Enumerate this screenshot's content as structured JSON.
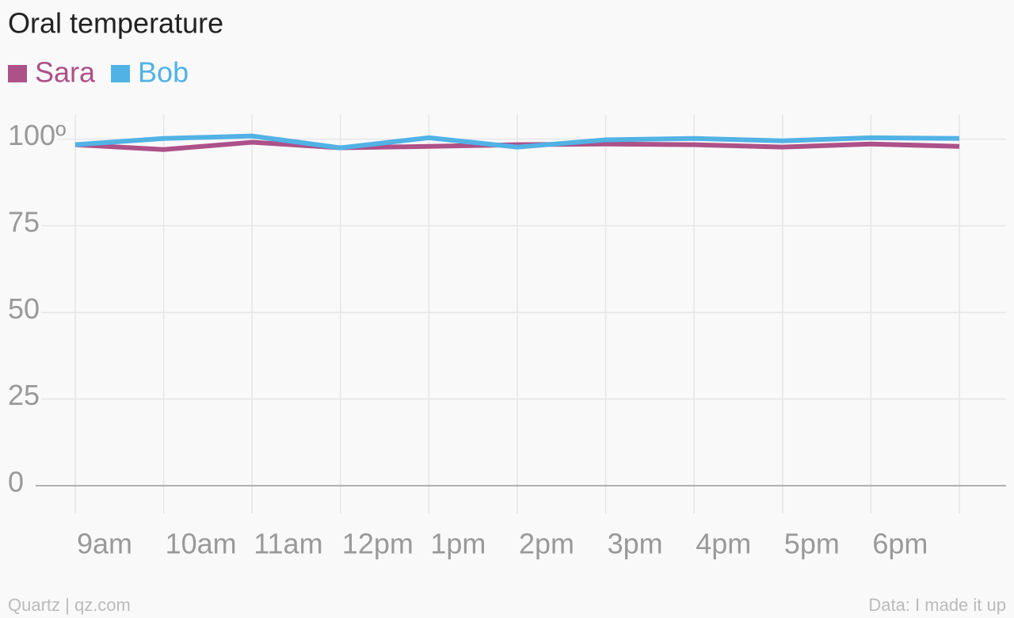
{
  "chart_data": {
    "type": "line",
    "title": "Oral temperature",
    "categories": [
      "9am",
      "10am",
      "11am",
      "12pm",
      "1pm",
      "2pm",
      "3pm",
      "4pm",
      "5pm",
      "6pm",
      null
    ],
    "series": [
      {
        "name": "Sara",
        "color": "#ad5189",
        "values": [
          98.4,
          97.0,
          99.1,
          97.5,
          97.9,
          98.4,
          98.6,
          98.4,
          97.7,
          98.6,
          97.9
        ]
      },
      {
        "name": "Bob",
        "color": "#51b2e5",
        "values": [
          98.4,
          100.2,
          100.9,
          97.5,
          100.4,
          97.7,
          99.8,
          100.2,
          99.5,
          100.4,
          100.2
        ]
      }
    ],
    "ylim": [
      -8,
      107
    ],
    "yticks": [
      0,
      25,
      50,
      75,
      {
        "value": 100,
        "label": "100º"
      }
    ],
    "grid": true,
    "source_left": "Quartz | qz.com",
    "source_right": "Data: I made it up"
  }
}
